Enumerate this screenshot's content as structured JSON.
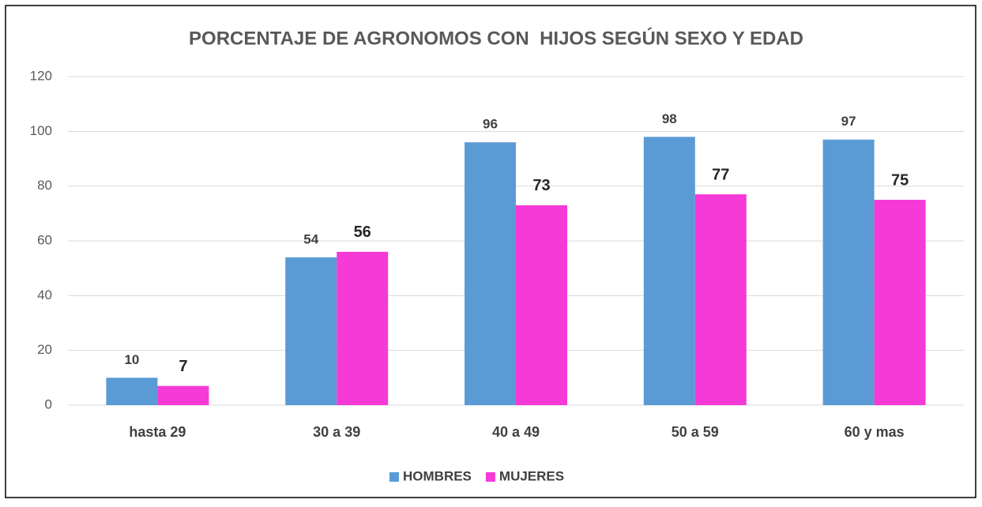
{
  "chart_data": {
    "type": "bar",
    "title": "PORCENTAJE DE AGRONOMOS CON  HIJOS SEGÚN SEXO Y EDAD",
    "categories": [
      "hasta 29",
      "30 a 39",
      "40 a 49",
      "50 a 59",
      "60 y mas"
    ],
    "series": [
      {
        "name": "HOMBRES",
        "color": "#5b9bd5",
        "values": [
          10,
          54,
          96,
          98,
          97
        ]
      },
      {
        "name": "MUJERES",
        "color": "#f53ad7",
        "values": [
          7,
          56,
          73,
          77,
          75
        ]
      }
    ],
    "ylim": [
      0,
      120
    ],
    "yticks": [
      0,
      20,
      40,
      60,
      80,
      100,
      120
    ],
    "grid": true,
    "legend": "bottom"
  }
}
